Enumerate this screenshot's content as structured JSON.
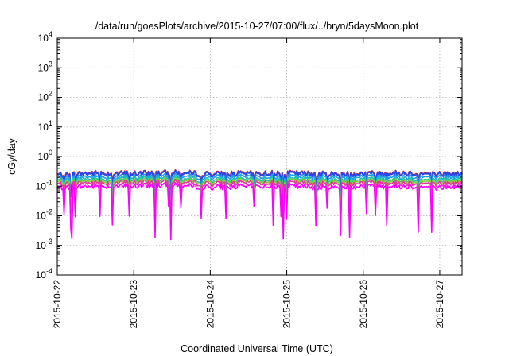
{
  "chart_data": {
    "type": "area",
    "title": "/data/run/goesPlots/archive/2015-10-27/07:00/flux/../bryn/5daysMoon.plot",
    "xlabel": "Coordinated Universal Time (UTC)",
    "ylabel": "cGy/day",
    "xlim": [
      "2015-10-22 00:00",
      "2015-10-27 07:00"
    ],
    "ylim": [
      0.0001,
      10000
    ],
    "yscale": "log",
    "grid": true,
    "x_ticks": [
      "2015-10-22",
      "2015-10-23",
      "2015-10-24",
      "2015-10-25",
      "2015-10-26",
      "2015-10-27"
    ],
    "y_ticks": [
      {
        "base": "10",
        "exp": "-4"
      },
      {
        "base": "10",
        "exp": "-3"
      },
      {
        "base": "10",
        "exp": "-2"
      },
      {
        "base": "10",
        "exp": "-1"
      },
      {
        "base": "10",
        "exp": "0"
      },
      {
        "base": "10",
        "exp": "1"
      },
      {
        "base": "10",
        "exp": "2"
      },
      {
        "base": "10",
        "exp": "3"
      },
      {
        "base": "10",
        "exp": "4"
      }
    ],
    "x": [
      "2015-10-22 00:00",
      "2015-10-22 12:00",
      "2015-10-23 00:00",
      "2015-10-23 12:00",
      "2015-10-24 00:00",
      "2015-10-24 12:00",
      "2015-10-25 00:00",
      "2015-10-25 12:00",
      "2015-10-26 00:00",
      "2015-10-26 12:00",
      "2015-10-27 00:00",
      "2015-10-27 07:00"
    ],
    "series": [
      {
        "color": "#e8262a",
        "values": [
          0.25,
          0.28,
          0.27,
          0.29,
          0.26,
          0.27,
          0.28,
          0.26,
          0.27,
          0.28,
          0.26,
          0.27
        ]
      },
      {
        "color": "#2a46e6",
        "values": [
          0.24,
          0.27,
          0.26,
          0.28,
          0.25,
          0.26,
          0.27,
          0.25,
          0.26,
          0.27,
          0.25,
          0.26
        ]
      },
      {
        "color": "#1fa0e6",
        "values": [
          0.19,
          0.21,
          0.2,
          0.22,
          0.2,
          0.21,
          0.21,
          0.2,
          0.21,
          0.21,
          0.2,
          0.21
        ]
      },
      {
        "color": "#21c4a8",
        "values": [
          0.16,
          0.17,
          0.17,
          0.18,
          0.16,
          0.17,
          0.17,
          0.16,
          0.17,
          0.17,
          0.16,
          0.17
        ]
      },
      {
        "color": "#7fd13a",
        "values": [
          0.14,
          0.15,
          0.15,
          0.16,
          0.14,
          0.15,
          0.15,
          0.14,
          0.15,
          0.15,
          0.14,
          0.15
        ]
      },
      {
        "color": "#e6399b",
        "values": [
          0.12,
          0.13,
          0.13,
          0.14,
          0.12,
          0.13,
          0.13,
          0.12,
          0.13,
          0.13,
          0.12,
          0.13
        ]
      },
      {
        "color": "#ff00ff",
        "values": [
          0.09,
          0.1,
          0.1,
          0.11,
          0.09,
          0.1,
          0.1,
          0.09,
          0.1,
          0.1,
          0.09,
          0.1
        ]
      }
    ]
  }
}
